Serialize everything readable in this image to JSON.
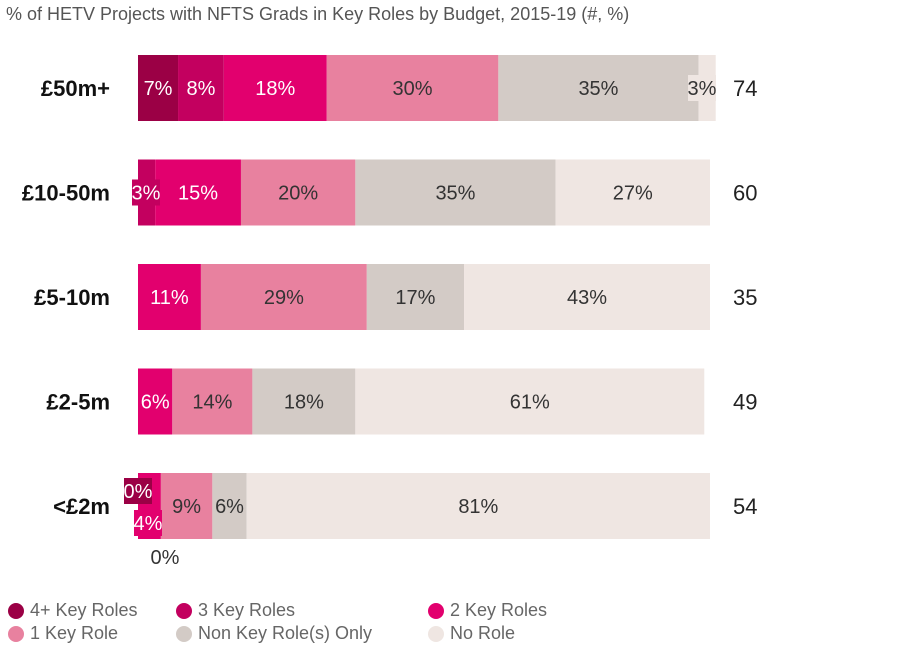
{
  "chart_data": {
    "type": "bar",
    "orientation": "horizontal",
    "stacked": "100%",
    "title": "% of HETV Projects with NFTS Grads in Key Roles by Budget, 2015-19 (#, %)",
    "categories": [
      "£50m+",
      "£10-50m",
      "£5-10m",
      "£2-5m",
      "<£2m"
    ],
    "totals": [
      74,
      60,
      35,
      49,
      54
    ],
    "series": [
      {
        "name": "4+ Key Roles",
        "color": "#9b0045",
        "values": [
          7,
          0,
          0,
          0,
          0
        ],
        "labels": [
          "7%",
          "",
          "",
          "",
          "0%"
        ]
      },
      {
        "name": "3 Key Roles",
        "color": "#c3005f",
        "values": [
          8,
          3,
          0,
          0,
          0
        ],
        "labels": [
          "8%",
          "3%",
          "",
          "",
          "0%"
        ]
      },
      {
        "name": "2 Key Roles",
        "color": "#e2006e",
        "values": [
          18,
          15,
          11,
          6,
          4
        ],
        "labels": [
          "18%",
          "15%",
          "11%",
          "6%",
          "4%"
        ]
      },
      {
        "name": "1 Key Role",
        "color": "#e8819f",
        "values": [
          30,
          20,
          29,
          14,
          9
        ],
        "labels": [
          "30%",
          "20%",
          "29%",
          "14%",
          "9%"
        ]
      },
      {
        "name": "Non Key Role(s) Only",
        "color": "#d3cbc6",
        "values": [
          35,
          35,
          17,
          18,
          6
        ],
        "labels": [
          "35%",
          "35%",
          "17%",
          "18%",
          "6%"
        ]
      },
      {
        "name": "No Role",
        "color": "#efe6e2",
        "values": [
          3,
          27,
          43,
          61,
          81
        ],
        "labels": [
          "3%",
          "27%",
          "43%",
          "61%",
          "81%"
        ]
      }
    ],
    "xlim": [
      0,
      100
    ],
    "grid": false,
    "legend_position": "bottom"
  }
}
